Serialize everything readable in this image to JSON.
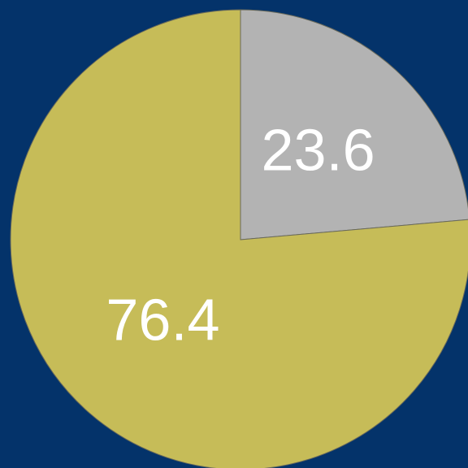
{
  "chart_data": {
    "type": "pie",
    "values": [
      23.6,
      76.4
    ],
    "colors": [
      "#b3b3b3",
      "#c6bc58"
    ],
    "start_angle": 0,
    "direction": "clockwise"
  }
}
